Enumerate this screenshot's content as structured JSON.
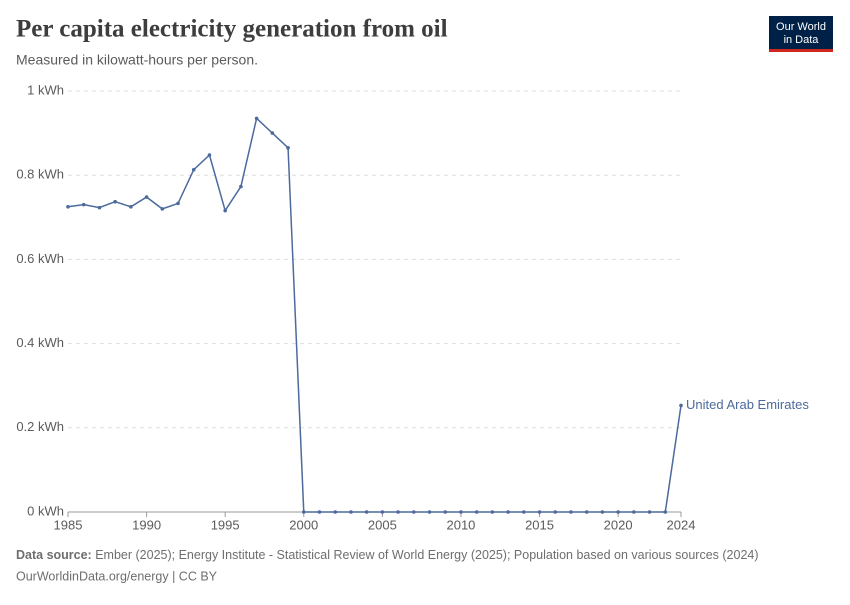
{
  "title": "Per capita electricity generation from oil",
  "subtitle": "Measured in kilowatt-hours per person.",
  "logo": {
    "line1": "Our World",
    "line2": "in Data"
  },
  "footer": {
    "source_label": "Data source:",
    "source_text": "Ember (2025); Energy Institute - Statistical Review of World Energy (2025); Population based on various sources (2024)",
    "link": "OurWorldinData.org/energy | CC BY"
  },
  "chart_data": {
    "type": "line",
    "x": [
      1985,
      1986,
      1987,
      1988,
      1989,
      1990,
      1991,
      1992,
      1993,
      1994,
      1995,
      1996,
      1997,
      1998,
      1999,
      2000,
      2001,
      2002,
      2003,
      2004,
      2005,
      2006,
      2007,
      2008,
      2009,
      2010,
      2011,
      2012,
      2013,
      2014,
      2015,
      2016,
      2017,
      2018,
      2019,
      2020,
      2021,
      2022,
      2023,
      2024
    ],
    "series": [
      {
        "name": "United Arab Emirates",
        "color": "#4c6a9c",
        "values": [
          0.725,
          0.73,
          0.723,
          0.737,
          0.725,
          0.748,
          0.72,
          0.733,
          0.813,
          0.848,
          0.716,
          0.773,
          0.935,
          0.9,
          0.865,
          0,
          0,
          0,
          0,
          0,
          0,
          0,
          0,
          0,
          0,
          0,
          0,
          0,
          0,
          0,
          0,
          0,
          0,
          0,
          0,
          0,
          0,
          0,
          0,
          0.253
        ]
      }
    ],
    "xlim": [
      1985,
      2024
    ],
    "xticks": [
      1985,
      1990,
      1995,
      2000,
      2005,
      2010,
      2015,
      2020,
      2024
    ],
    "ylim": [
      0,
      1
    ],
    "yticks": [
      {
        "value": 0,
        "label": "0 kWh"
      },
      {
        "value": 0.2,
        "label": "0.2 kWh"
      },
      {
        "value": 0.4,
        "label": "0.4 kWh"
      },
      {
        "value": 0.6,
        "label": "0.6 kWh"
      },
      {
        "value": 0.8,
        "label": "0.8 kWh"
      },
      {
        "value": 1,
        "label": "1 kWh"
      }
    ],
    "grid": true
  }
}
